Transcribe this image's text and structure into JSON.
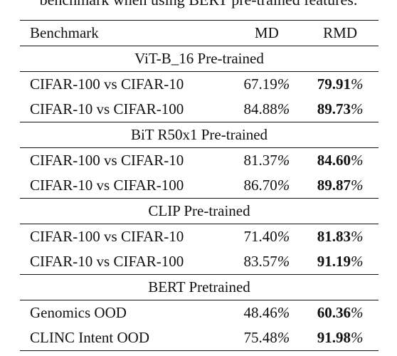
{
  "caption": "benchmark when using BERT pre-trained features.",
  "table": {
    "headers": [
      "Benchmark",
      "MD",
      "RMD"
    ],
    "sections": [
      {
        "title": "ViT-B_16 Pre-trained",
        "rows": [
          {
            "benchmark": "CIFAR-100 vs CIFAR-10",
            "md": "67.19",
            "rmd": "79.91"
          },
          {
            "benchmark": "CIFAR-10 vs CIFAR-100",
            "md": "84.88",
            "rmd": "89.73"
          }
        ]
      },
      {
        "title": "BiT R50x1 Pre-trained",
        "rows": [
          {
            "benchmark": "CIFAR-100 vs CIFAR-10",
            "md": "81.37",
            "rmd": "84.60"
          },
          {
            "benchmark": "CIFAR-10 vs CIFAR-100",
            "md": "86.70",
            "rmd": "89.87"
          }
        ]
      },
      {
        "title": "CLIP Pre-trained",
        "rows": [
          {
            "benchmark": "CIFAR-100 vs CIFAR-10",
            "md": "71.40",
            "rmd": "81.83"
          },
          {
            "benchmark": "CIFAR-10 vs CIFAR-100",
            "md": "83.57",
            "rmd": "91.19"
          }
        ]
      },
      {
        "title": "BERT Pretrained",
        "rows": [
          {
            "benchmark": "Genomics OOD",
            "md": "48.46",
            "rmd": "60.36"
          },
          {
            "benchmark": "CLINC Intent OOD",
            "md": "75.48",
            "rmd": "91.98"
          }
        ]
      }
    ],
    "percent_sign": "%"
  }
}
